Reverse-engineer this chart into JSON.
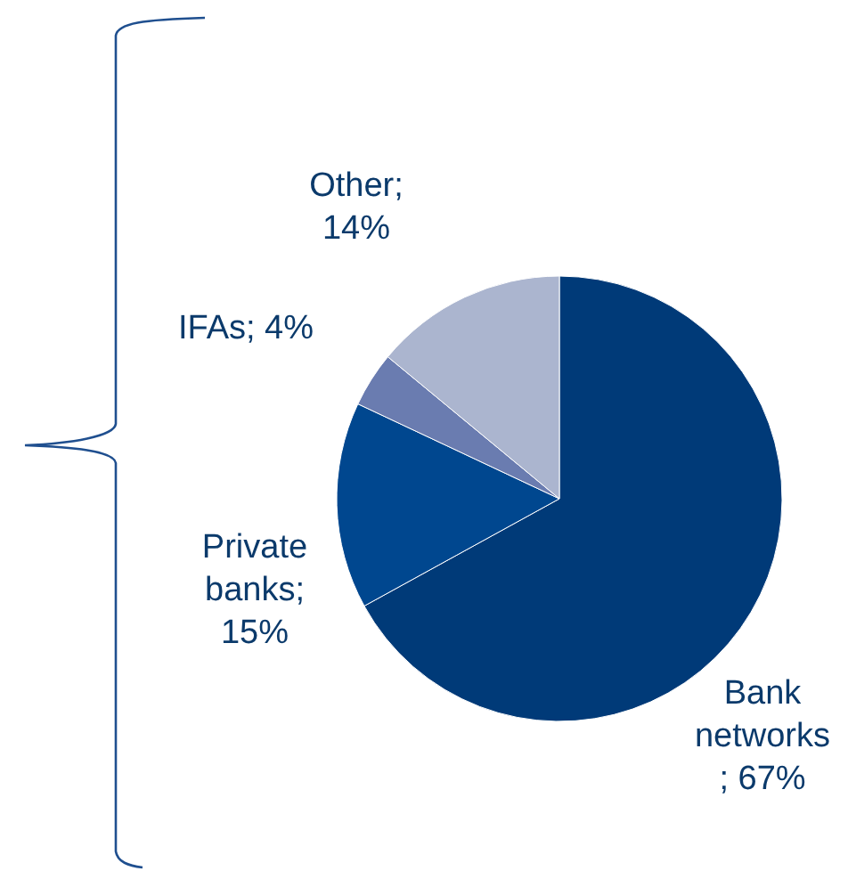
{
  "chart_data": {
    "type": "pie",
    "categories": [
      "Bank networks",
      "Private banks",
      "IFAs",
      "Other"
    ],
    "values": [
      67,
      15,
      4,
      14
    ],
    "colors": [
      "#003a78",
      "#00478f",
      "#6a7cb0",
      "#abb5cf"
    ],
    "value_labels": [
      "; 67%",
      "; 15%",
      "; 4%",
      "; 14%"
    ],
    "legend": false
  }
}
